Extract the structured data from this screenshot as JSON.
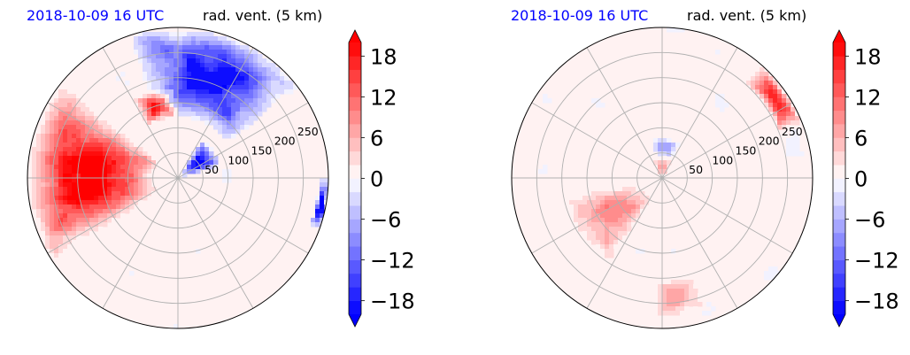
{
  "colors": {
    "date": "#0000ff",
    "negative_extreme": "#0000ff",
    "positive_extreme": "#ff0000",
    "grid": "#b0b0b0",
    "frame": "#000000"
  },
  "chart_data": [
    {
      "type": "heatmap",
      "projection": "polar",
      "date_label": "2018-10-09 16 UTC",
      "field_label": "rad. vent. (5 km)",
      "radial_ticks": [
        "50",
        "100",
        "150",
        "200",
        "250"
      ],
      "radial_tick_values": [
        50,
        100,
        150,
        200,
        250
      ],
      "radial_max": 300,
      "angular_grid_deg": [
        0,
        30,
        60,
        90,
        120,
        150,
        180,
        210,
        240,
        270,
        300,
        330
      ],
      "colorbar": {
        "levels": [
          -20,
          -18,
          -16,
          -14,
          -12,
          -10,
          -8,
          -6,
          -4,
          -2,
          0,
          2,
          4,
          6,
          8,
          10,
          12,
          14,
          16,
          18,
          20
        ],
        "tick_values": [
          -18,
          -12,
          -6,
          0,
          6,
          12,
          18
        ],
        "tick_labels": [
          "−18",
          "−12",
          "−6",
          "0",
          "6",
          "12",
          "18"
        ],
        "extend": "both",
        "cmap": "bwr"
      },
      "features": [
        {
          "desc": "strong positive band in west / north-west sector",
          "theta_deg": [
            140,
            215
          ],
          "r": [
            40,
            300
          ],
          "value": 18
        },
        {
          "desc": "strong negative region north-east",
          "theta_deg": [
            35,
            110
          ],
          "r": [
            120,
            300
          ],
          "value": -16
        },
        {
          "desc": "strong negative near center east",
          "theta_deg": [
            15,
            60
          ],
          "r": [
            10,
            90
          ],
          "value": -20
        },
        {
          "desc": "positive blob north",
          "theta_deg": [
            90,
            120
          ],
          "r": [
            120,
            180
          ],
          "value": 16
        },
        {
          "desc": "negative patch far east",
          "theta_deg": [
            -20,
            0
          ],
          "r": [
            280,
            300
          ],
          "value": -18
        }
      ]
    },
    {
      "type": "heatmap",
      "projection": "polar",
      "date_label": "2018-10-09 16 UTC",
      "field_label": "rad. vent. (5 km)",
      "radial_ticks": [
        "50",
        "100",
        "150",
        "200",
        "250"
      ],
      "radial_tick_values": [
        50,
        100,
        150,
        200,
        250
      ],
      "radial_max": 300,
      "angular_grid_deg": [
        0,
        30,
        60,
        90,
        120,
        150,
        180,
        210,
        240,
        270,
        300,
        330
      ],
      "colorbar": {
        "levels": [
          -20,
          -18,
          -16,
          -14,
          -12,
          -10,
          -8,
          -6,
          -4,
          -2,
          0,
          2,
          4,
          6,
          8,
          10,
          12,
          14,
          16,
          18,
          20
        ],
        "tick_values": [
          -18,
          -12,
          -6,
          0,
          6,
          12,
          18
        ],
        "tick_labels": [
          "−18",
          "−12",
          "−6",
          "0",
          "6",
          "12",
          "18"
        ],
        "extend": "both",
        "cmap": "bwr"
      },
      "features": [
        {
          "desc": "weak positive west-southwest",
          "theta_deg": [
            190,
            240
          ],
          "r": [
            40,
            200
          ],
          "value": 8
        },
        {
          "desc": "small positive near center",
          "theta_deg": [
            60,
            120
          ],
          "r": [
            0,
            40
          ],
          "value": 6
        },
        {
          "desc": "weak negative near center north",
          "theta_deg": [
            60,
            110
          ],
          "r": [
            40,
            80
          ],
          "value": -6
        },
        {
          "desc": "positive at north-east rim",
          "theta_deg": [
            20,
            50
          ],
          "r": [
            250,
            300
          ],
          "value": 14
        },
        {
          "desc": "weak positive south",
          "theta_deg": [
            265,
            290
          ],
          "r": [
            200,
            280
          ],
          "value": 6
        }
      ]
    }
  ]
}
